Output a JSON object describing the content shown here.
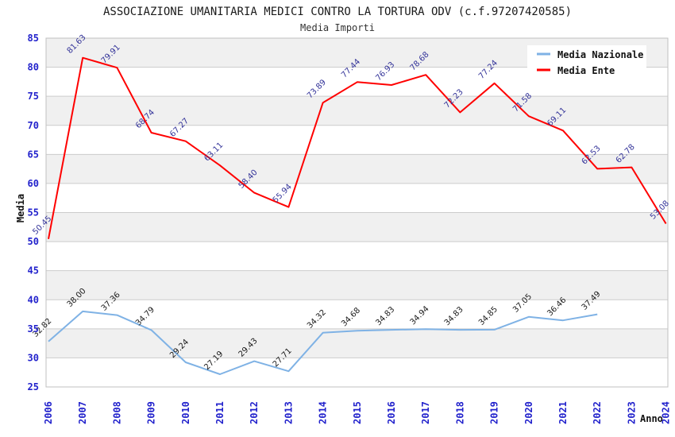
{
  "chart_data": {
    "type": "line",
    "title": "ASSOCIAZIONE UMANITARIA MEDICI CONTRO LA TORTURA ODV (c.f.97207420585)",
    "subtitle": "Media Importi",
    "xlabel": "Anno",
    "ylabel": "Media",
    "ylim": [
      25,
      85
    ],
    "ytick_step": 5,
    "grid": "horizontal-only",
    "legend_position": "top-right-inside",
    "categories": [
      "2006",
      "2007",
      "2008",
      "2009",
      "2010",
      "2011",
      "2012",
      "2013",
      "2014",
      "2015",
      "2016",
      "2017",
      "2018",
      "2019",
      "2020",
      "2021",
      "2022",
      "2023",
      "2024"
    ],
    "series": [
      {
        "name": "Media Nazionale",
        "color": "#7FB2E5",
        "label_color": "#1a1a1a",
        "values": [
          32.82,
          38.0,
          37.36,
          34.79,
          29.24,
          27.19,
          29.43,
          27.71,
          34.32,
          34.68,
          34.83,
          34.94,
          34.83,
          34.85,
          37.05,
          36.46,
          37.49,
          null,
          null
        ]
      },
      {
        "name": "Media Ente",
        "color": "#FF0000",
        "label_color": "#333399",
        "values": [
          50.45,
          81.63,
          79.91,
          68.74,
          67.27,
          63.11,
          58.4,
          55.94,
          73.89,
          77.44,
          76.93,
          78.68,
          72.23,
          77.24,
          71.58,
          69.11,
          62.53,
          62.78,
          53.08
        ]
      }
    ],
    "colors": {
      "band_fill": "#f0f0f0",
      "grid_line": "#cccccc",
      "plot_border": "#c0c0c0",
      "tick_label": "#2222cc",
      "legend_bg": "#ffffff"
    }
  }
}
